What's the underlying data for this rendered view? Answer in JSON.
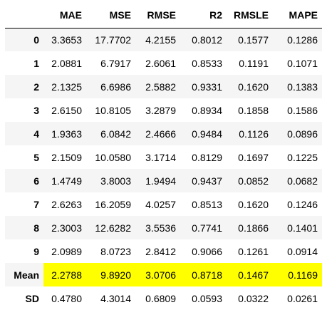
{
  "table": {
    "index_header": "",
    "columns": [
      "MAE",
      "MSE",
      "RMSE",
      "R2",
      "RMSLE",
      "MAPE"
    ],
    "rows": [
      {
        "index": "0",
        "values": [
          "3.3653",
          "17.7702",
          "4.2155",
          "0.8012",
          "0.1577",
          "0.1286"
        ]
      },
      {
        "index": "1",
        "values": [
          "2.0881",
          "6.7917",
          "2.6061",
          "0.8533",
          "0.1191",
          "0.1071"
        ]
      },
      {
        "index": "2",
        "values": [
          "2.1325",
          "6.6986",
          "2.5882",
          "0.9331",
          "0.1620",
          "0.1383"
        ]
      },
      {
        "index": "3",
        "values": [
          "2.6150",
          "10.8105",
          "3.2879",
          "0.8934",
          "0.1858",
          "0.1586"
        ]
      },
      {
        "index": "4",
        "values": [
          "1.9363",
          "6.0842",
          "2.4666",
          "0.9484",
          "0.1126",
          "0.0896"
        ]
      },
      {
        "index": "5",
        "values": [
          "2.1509",
          "10.0580",
          "3.1714",
          "0.8129",
          "0.1697",
          "0.1225"
        ]
      },
      {
        "index": "6",
        "values": [
          "1.4749",
          "3.8003",
          "1.9494",
          "0.9437",
          "0.0852",
          "0.0682"
        ]
      },
      {
        "index": "7",
        "values": [
          "2.6263",
          "16.2059",
          "4.0257",
          "0.8513",
          "0.1620",
          "0.1246"
        ]
      },
      {
        "index": "8",
        "values": [
          "2.3003",
          "12.6282",
          "3.5536",
          "0.7741",
          "0.1866",
          "0.1401"
        ]
      },
      {
        "index": "9",
        "values": [
          "2.0989",
          "8.0723",
          "2.8412",
          "0.9066",
          "0.1261",
          "0.0914"
        ]
      },
      {
        "index": "Mean",
        "values": [
          "2.2788",
          "9.8920",
          "3.0706",
          "0.8718",
          "0.1467",
          "0.1169"
        ],
        "highlight": true
      },
      {
        "index": "SD",
        "values": [
          "0.4780",
          "4.3014",
          "0.6809",
          "0.0593",
          "0.0322",
          "0.0261"
        ]
      }
    ]
  },
  "colors": {
    "highlight": "#ffff00",
    "stripe": "#f5f5f5",
    "background": "#ffffff",
    "text": "#000000"
  }
}
